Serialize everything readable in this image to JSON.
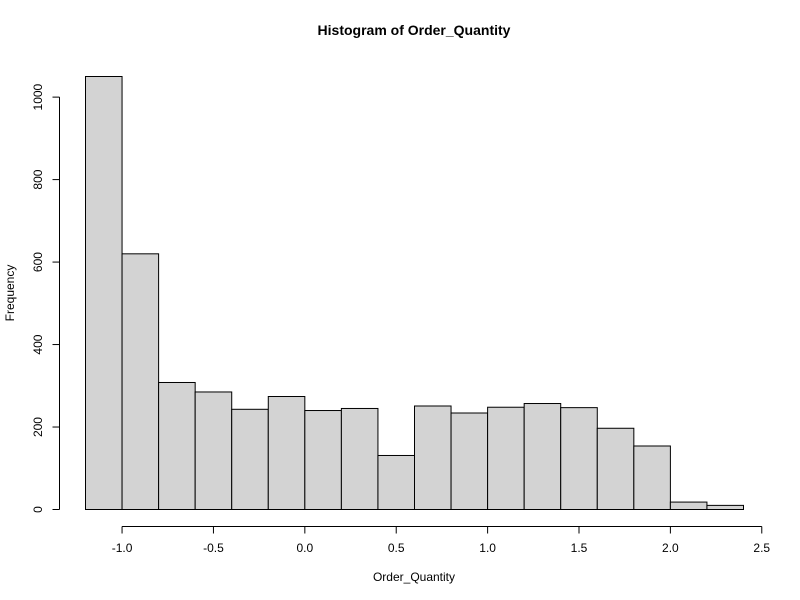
{
  "chart_data": {
    "type": "bar",
    "subtype": "histogram",
    "title": "Histogram of Order_Quantity",
    "xlabel": "Order_Quantity",
    "ylabel": "Frequency",
    "bin_edges": [
      -1.2,
      -1.0,
      -0.8,
      -0.6,
      -0.4,
      -0.2,
      0.0,
      0.2,
      0.4,
      0.6,
      0.8,
      1.0,
      1.2,
      1.4,
      1.6,
      1.8,
      2.0,
      2.2,
      2.4
    ],
    "values": [
      1050,
      620,
      308,
      285,
      243,
      274,
      240,
      245,
      131,
      251,
      234,
      248,
      257,
      247,
      197,
      154,
      18,
      10
    ],
    "xlim": [
      -1.2,
      2.5
    ],
    "ylim": [
      0,
      1050
    ],
    "x_ticks": [
      "-1.0",
      "-0.5",
      "0.0",
      "0.5",
      "1.0",
      "1.5",
      "2.0",
      "2.5"
    ],
    "y_ticks": [
      "0",
      "200",
      "400",
      "600",
      "800",
      "1000"
    ],
    "bar_color": "#d3d3d3",
    "border_color": "#000000",
    "grid": false,
    "legend": "none"
  }
}
